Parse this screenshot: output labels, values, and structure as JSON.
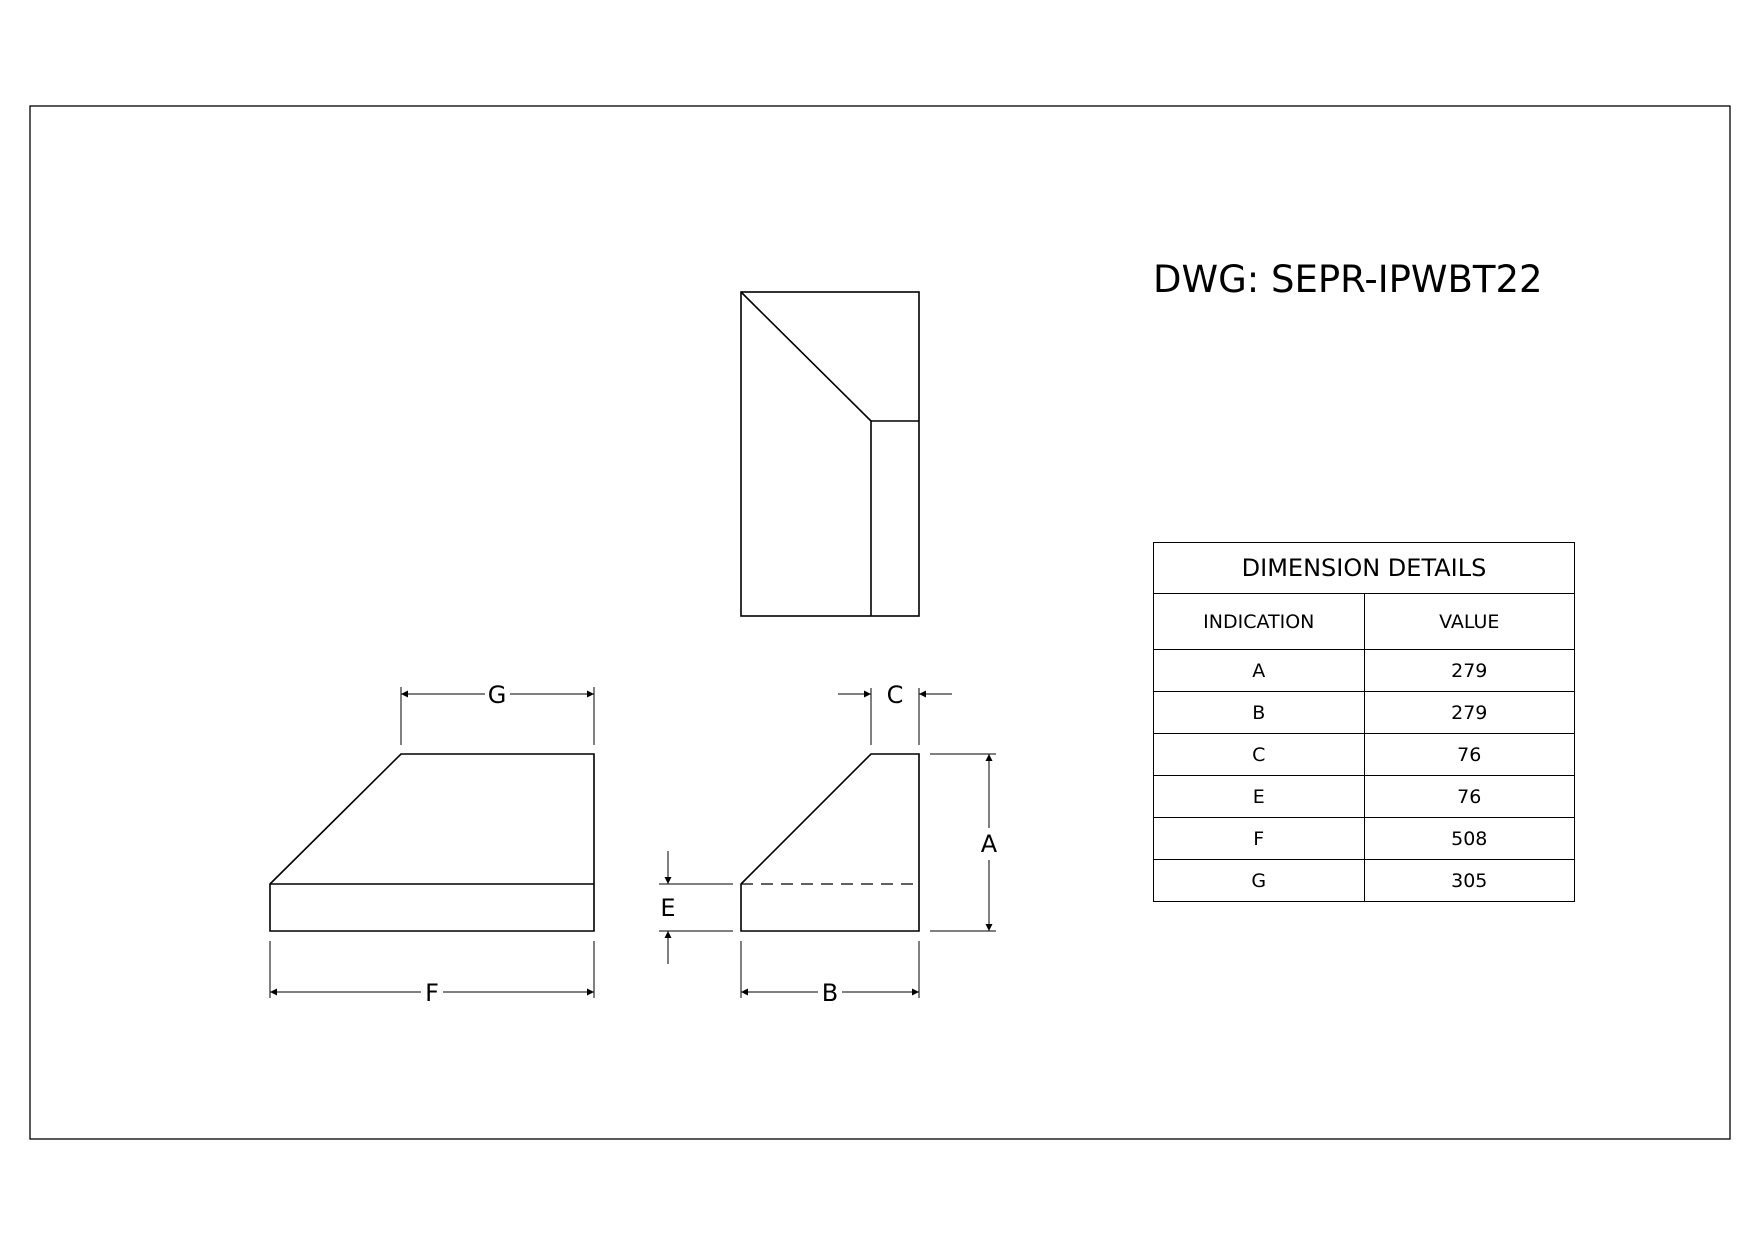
{
  "drawing": {
    "title": "DWG: SEPR-IPWBT22"
  },
  "dimension_table": {
    "heading": "DIMENSION DETAILS",
    "columns": [
      "INDICATION",
      "VALUE"
    ],
    "rows": [
      {
        "indication": "A",
        "value": "279"
      },
      {
        "indication": "B",
        "value": "279"
      },
      {
        "indication": "C",
        "value": "76"
      },
      {
        "indication": "E",
        "value": "76"
      },
      {
        "indication": "F",
        "value": "508"
      },
      {
        "indication": "G",
        "value": "305"
      }
    ]
  },
  "dimension_labels": {
    "A": "A",
    "B": "B",
    "C": "C",
    "E": "E",
    "F": "F",
    "G": "G"
  }
}
